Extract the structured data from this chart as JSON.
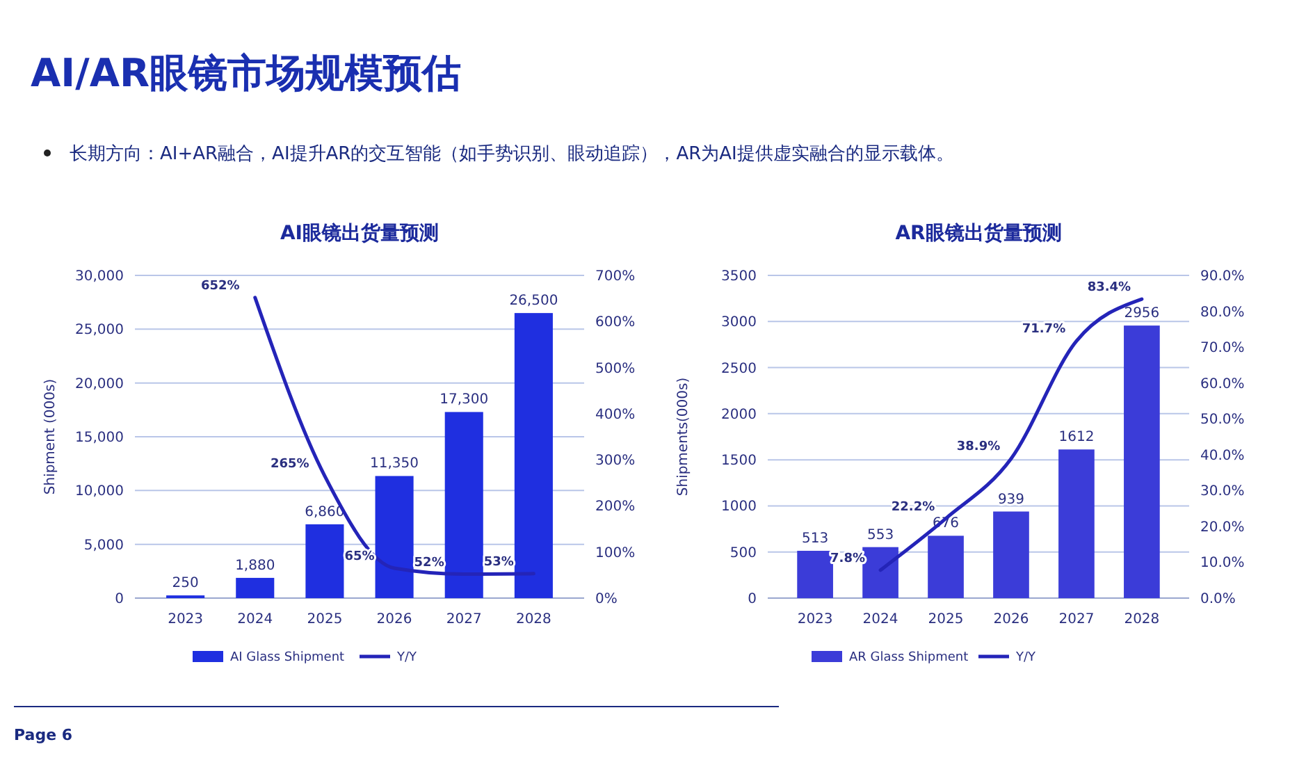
{
  "chart_data": [
    {
      "type": "bar",
      "title": "AI眼镜出货量预测",
      "ylabel": "Shipment (000s)",
      "categories": [
        "2023",
        "2024",
        "2025",
        "2026",
        "2027",
        "2028"
      ],
      "series": [
        {
          "name": "AI Glass Shipment",
          "color": "#1f2fe0",
          "values": [
            250,
            1880,
            6860,
            11350,
            17300,
            26500
          ],
          "value_labels": [
            "250",
            "1,880",
            "6,860",
            "11,350",
            "17,300",
            "26,500"
          ]
        },
        {
          "name": "Y/Y",
          "type": "line",
          "axis": "y2",
          "color": "#2424b8",
          "values": [
            null,
            652,
            265,
            65,
            52,
            53
          ],
          "value_labels": [
            null,
            "652%",
            "265%",
            "65%",
            "52%",
            "53%"
          ]
        }
      ],
      "ylim": [
        0,
        30000
      ],
      "yticks": [
        {
          "value": 0,
          "label": "0"
        },
        {
          "value": 5000,
          "label": "5,000"
        },
        {
          "value": 10000,
          "label": "10,000"
        },
        {
          "value": 15000,
          "label": "15,000"
        },
        {
          "value": 20000,
          "label": "20,000"
        },
        {
          "value": 25000,
          "label": "25,000"
        },
        {
          "value": 30000,
          "label": "30,000"
        }
      ],
      "y2lim": [
        0,
        700
      ],
      "y2ticks": [
        {
          "value": 0,
          "label": "0%"
        },
        {
          "value": 100,
          "label": "100%"
        },
        {
          "value": 200,
          "label": "200%"
        },
        {
          "value": 300,
          "label": "300%"
        },
        {
          "value": 400,
          "label": "400%"
        },
        {
          "value": 500,
          "label": "500%"
        },
        {
          "value": 600,
          "label": "600%"
        },
        {
          "value": 700,
          "label": "700%"
        }
      ],
      "grid": "y",
      "legend": "bottom",
      "line_style": "solid",
      "marker": "none",
      "annotations": [
        "AI/AR眼镜市场规模预估",
        "长期方向：AI+AR融合，AI提升AR的交互智能（如手势识别、眼动追踪），AR为AI提供虚实融合的显示载体。",
        "Page 6"
      ]
    },
    {
      "type": "bar",
      "title": "AR眼镜出货量预测",
      "ylabel": "Shipments(000s)",
      "categories": [
        "2023",
        "2024",
        "2025",
        "2026",
        "2027",
        "2028"
      ],
      "series": [
        {
          "name": "AR Glass Shipment",
          "color": "#3b3cd8",
          "values": [
            513,
            553,
            676,
            939,
            1612,
            2956
          ],
          "value_labels": [
            "513",
            "553",
            "676",
            "939",
            "1612",
            "2956"
          ]
        },
        {
          "name": "Y/Y",
          "type": "line",
          "axis": "y2",
          "color": "#2424b8",
          "values": [
            null,
            7.8,
            22.2,
            38.9,
            71.7,
            83.4
          ],
          "value_labels": [
            null,
            "7.8%",
            "22.2%",
            "38.9%",
            "71.7%",
            "83.4%"
          ]
        }
      ],
      "ylim": [
        0,
        3500
      ],
      "yticks": [
        0,
        500,
        1000,
        1500,
        2000,
        2500,
        3000,
        3500
      ],
      "y2lim": [
        0,
        90
      ],
      "y2ticks": [
        {
          "value": 0,
          "label": "0.0%"
        },
        {
          "value": 10,
          "label": "10.0%"
        },
        {
          "value": 20,
          "label": "20.0%"
        },
        {
          "value": 30,
          "label": "30.0%"
        },
        {
          "value": 40,
          "label": "40.0%"
        },
        {
          "value": 50,
          "label": "50.0%"
        },
        {
          "value": 60,
          "label": "60.0%"
        },
        {
          "value": 70,
          "label": "70.0%"
        },
        {
          "value": 80,
          "label": "80.0%"
        },
        {
          "value": 90,
          "label": "90.0%"
        }
      ],
      "grid": "y",
      "legend": "bottom",
      "line_style": "solid",
      "marker": "none"
    }
  ]
}
